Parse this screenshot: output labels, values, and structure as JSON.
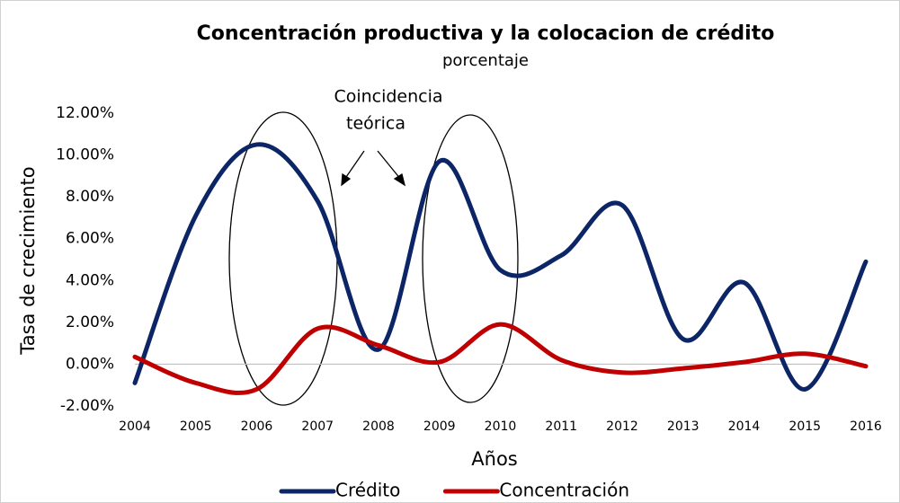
{
  "chart_data": {
    "type": "line",
    "title": "Concentración productiva y la colocacion de crédito",
    "subtitle": "porcentaje",
    "annotation": [
      "Coincidencia",
      "teórica"
    ],
    "x_label": "Años",
    "y_label": "Tasa de crecimiento",
    "categories": [
      "2004",
      "2005",
      "2006",
      "2007",
      "2008",
      "2009",
      "2010",
      "2011",
      "2012",
      "2013",
      "2014",
      "2015",
      "2016"
    ],
    "series": [
      {
        "name": "Crédito",
        "color": "#0c2566",
        "values": [
          -0.9,
          7.1,
          10.5,
          7.8,
          0.7,
          9.7,
          4.5,
          5.2,
          7.6,
          1.2,
          3.9,
          -1.2,
          4.9
        ]
      },
      {
        "name": "Concentración",
        "color": "#c00000",
        "values": [
          0.35,
          -0.9,
          -1.2,
          1.7,
          0.9,
          0.1,
          1.9,
          0.2,
          -0.4,
          -0.2,
          0.1,
          0.5,
          -0.1
        ]
      }
    ],
    "ylim": [
      -2,
      12
    ],
    "yticks": [
      {
        "value": -2,
        "label": "-2.00%"
      },
      {
        "value": 0,
        "label": "0.00%"
      },
      {
        "value": 2,
        "label": "2.00%"
      },
      {
        "value": 4,
        "label": "4.00%"
      },
      {
        "value": 6,
        "label": "6.00%"
      },
      {
        "value": 8,
        "label": "8.00%"
      },
      {
        "value": 10,
        "label": "10.00%"
      },
      {
        "value": 12,
        "label": "12.00%"
      }
    ],
    "legend": "bottom"
  }
}
